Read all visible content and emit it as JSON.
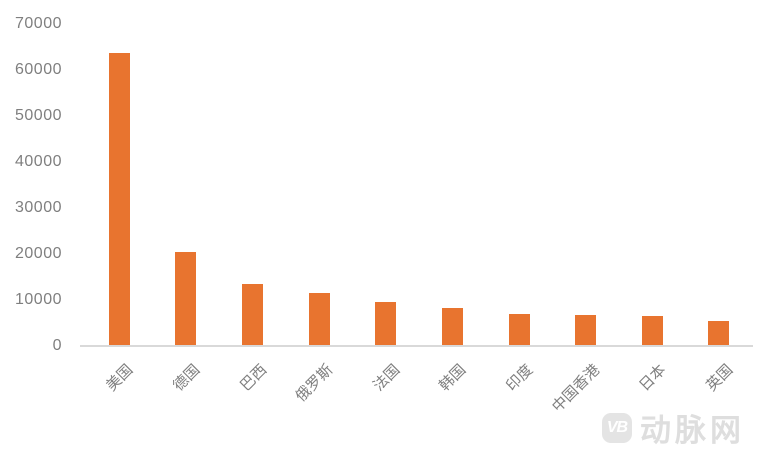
{
  "chart_data": {
    "type": "bar",
    "categories": [
      "美国",
      "德国",
      "巴西",
      "俄罗斯",
      "法国",
      "韩国",
      "印度",
      "中国香港",
      "日本",
      "英国"
    ],
    "values": [
      63500,
      20500,
      13500,
      11600,
      9500,
      8200,
      7000,
      6800,
      6500,
      5400
    ],
    "ylim": [
      0,
      70000
    ],
    "ytick_interval": 10000,
    "ytick_labels": [
      "0",
      "10000",
      "20000",
      "30000",
      "40000",
      "50000",
      "60000",
      "70000"
    ],
    "gridlines": false,
    "legend_position": "none",
    "bar_color": "#e8742f",
    "axis_line_color": "#d9d9d9",
    "tick_label_color": "#7f7f7f"
  },
  "watermark": {
    "logo_text": "VB",
    "text": "动脉网",
    "logo_color": "#e4e4e4",
    "text_color": "#dedede"
  }
}
